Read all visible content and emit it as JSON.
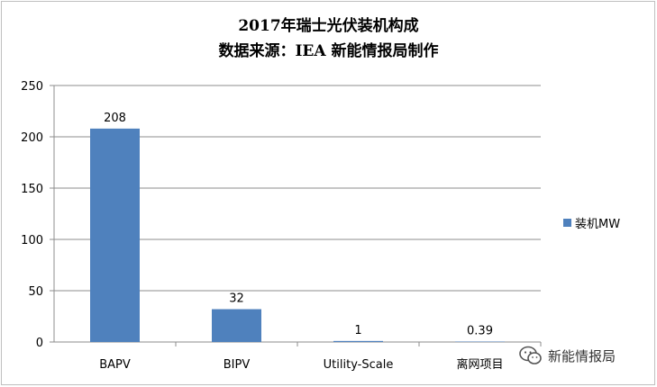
{
  "chart_data": {
    "type": "bar",
    "title": "2017年瑞士光伏装机构成",
    "subtitle": "数据来源：IEA 新能情报局制作",
    "categories": [
      "BAPV",
      "BIPV",
      "Utility-Scale",
      "离网项目"
    ],
    "series": [
      {
        "name": "装机MW",
        "values": [
          208,
          32,
          1,
          0.39
        ],
        "data_labels": [
          "208",
          "32",
          "1",
          "0.39"
        ],
        "color": "#4f81bd"
      }
    ],
    "ylim": [
      0,
      250
    ],
    "yticks": [
      0,
      50,
      100,
      150,
      200,
      250
    ],
    "xlabel": "",
    "ylabel": "",
    "grid": true,
    "legend_position": "right"
  },
  "watermark": {
    "text": "新能情报局",
    "icon": "wechat-icon"
  }
}
